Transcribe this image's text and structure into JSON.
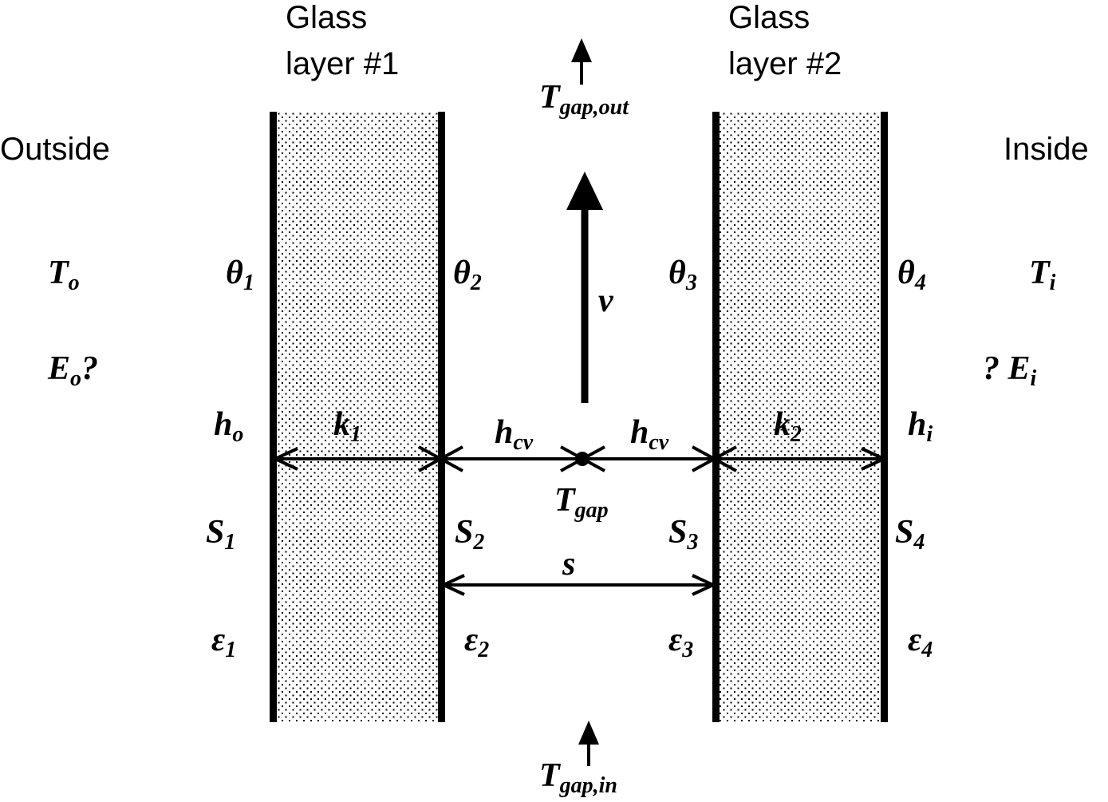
{
  "glass1": {
    "line1": "Glass",
    "line2": "layer #1"
  },
  "glass2": {
    "line1": "Glass",
    "line2": "layer #2"
  },
  "outside": "Outside",
  "inside": "Inside",
  "labels": {
    "Tgapout": {
      "main": "T",
      "sub": "gap,out"
    },
    "Tgapin": {
      "main": "T",
      "sub": "gap,in"
    },
    "Tgap": {
      "main": "T",
      "sub": "gap"
    },
    "v": {
      "main": "v"
    },
    "To": {
      "main": "T",
      "sub": "o"
    },
    "Ti": {
      "main": "T",
      "sub": "i"
    },
    "Eo": {
      "main": "E",
      "sub": "o",
      "suffix": "?"
    },
    "Ei": {
      "prefix": "?  E",
      "sub": "i"
    },
    "theta1": {
      "main": "θ",
      "sub": "1"
    },
    "theta2": {
      "main": "θ",
      "sub": "2"
    },
    "theta3": {
      "main": "θ",
      "sub": "3"
    },
    "theta4": {
      "main": "θ",
      "sub": "4"
    },
    "ho": {
      "main": "h",
      "sub": "o"
    },
    "hi": {
      "main": "h",
      "sub": "i"
    },
    "k1": {
      "main": "k",
      "sub": "1"
    },
    "k2": {
      "main": "k",
      "sub": "2"
    },
    "hcv1": {
      "main": "h",
      "sub": "cv"
    },
    "hcv2": {
      "main": "h",
      "sub": "cv"
    },
    "S1": {
      "main": "S",
      "sub": "1"
    },
    "S2": {
      "main": "S",
      "sub": "2"
    },
    "S3": {
      "main": "S",
      "sub": "3"
    },
    "S4": {
      "main": "S",
      "sub": "4"
    },
    "s": {
      "main": "s"
    },
    "eps1": {
      "main": "ε",
      "sub": "1"
    },
    "eps2": {
      "main": "ε",
      "sub": "2"
    },
    "eps3": {
      "main": "ε",
      "sub": "3"
    },
    "eps4": {
      "main": "ε",
      "sub": "4"
    }
  }
}
